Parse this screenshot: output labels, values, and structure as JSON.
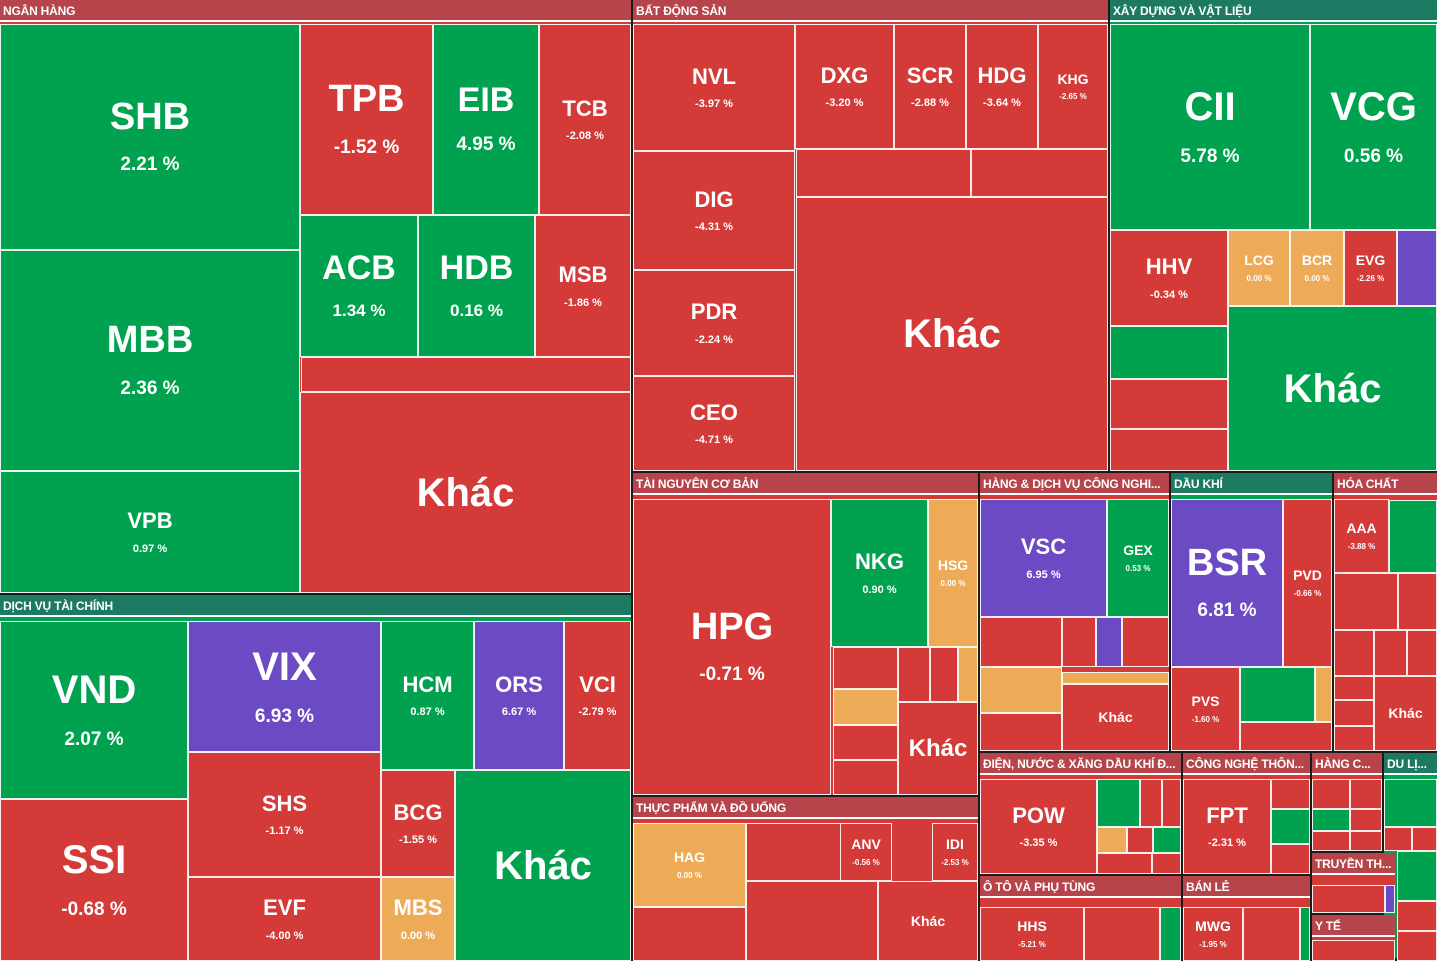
{
  "colors": {
    "up": "#00a24f",
    "down": "#d33a38",
    "ceiling": "#6b4ac4",
    "flat": "#eeab57",
    "header_red": "#b7444b",
    "header_green": "#1c7a62"
  },
  "sections": [
    {
      "key": "bank",
      "title": "NGÂN HÀNG",
      "tone": "red"
    },
    {
      "key": "realestate",
      "title": "BẤT ĐỘNG SẢN",
      "tone": "red"
    },
    {
      "key": "construction",
      "title": "XÂY DỰNG VÀ VẬT LIỆU",
      "tone": "green"
    },
    {
      "key": "finance",
      "title": "DỊCH VỤ TÀI CHÍNH",
      "tone": "green"
    },
    {
      "key": "resources",
      "title": "TÀI NGUYÊN CƠ BẢN",
      "tone": "red"
    },
    {
      "key": "industrial",
      "title": "HÀNG & DỊCH VỤ CÔNG NGHI...",
      "tone": "red"
    },
    {
      "key": "oilgas",
      "title": "DẦU KHÍ",
      "tone": "green"
    },
    {
      "key": "chemicals",
      "title": "HÓA CHẤT",
      "tone": "red"
    },
    {
      "key": "food",
      "title": "THỰC PHẨM VÀ ĐỒ UỐNG",
      "tone": "red"
    },
    {
      "key": "utilities",
      "title": "ĐIỆN, NƯỚC & XĂNG DẦU KHÍ Đ...",
      "tone": "red"
    },
    {
      "key": "tech",
      "title": "CÔNG NGHỆ THÔN...",
      "tone": "red"
    },
    {
      "key": "consumer",
      "title": "HÀNG C...",
      "tone": "red"
    },
    {
      "key": "travel",
      "title": "DU LỊ...",
      "tone": "green"
    },
    {
      "key": "auto",
      "title": "Ô TÔ VÀ PHỤ TÙNG",
      "tone": "red"
    },
    {
      "key": "retail",
      "title": "BÁN LẺ",
      "tone": "red"
    },
    {
      "key": "media",
      "title": "TRUYỀN TH...",
      "tone": "red"
    },
    {
      "key": "health",
      "title": "Y TẾ",
      "tone": "red"
    }
  ],
  "stocks": [
    {
      "sector": "bank",
      "ticker": "SHB",
      "change": "2.21 %",
      "status": "up"
    },
    {
      "sector": "bank",
      "ticker": "MBB",
      "change": "2.36 %",
      "status": "up"
    },
    {
      "sector": "bank",
      "ticker": "VPB",
      "change": "0.97 %",
      "status": "up"
    },
    {
      "sector": "bank",
      "ticker": "TPB",
      "change": "-1.52 %",
      "status": "down"
    },
    {
      "sector": "bank",
      "ticker": "EIB",
      "change": "4.95 %",
      "status": "up"
    },
    {
      "sector": "bank",
      "ticker": "TCB",
      "change": "-2.08 %",
      "status": "down"
    },
    {
      "sector": "bank",
      "ticker": "ACB",
      "change": "1.34 %",
      "status": "up"
    },
    {
      "sector": "bank",
      "ticker": "HDB",
      "change": "0.16 %",
      "status": "up"
    },
    {
      "sector": "bank",
      "ticker": "MSB",
      "change": "-1.86 %",
      "status": "down"
    },
    {
      "sector": "bank",
      "ticker": "Khác",
      "change": "",
      "status": "down"
    },
    {
      "sector": "realestate",
      "ticker": "NVL",
      "change": "-3.97 %",
      "status": "down"
    },
    {
      "sector": "realestate",
      "ticker": "DXG",
      "change": "-3.20 %",
      "status": "down"
    },
    {
      "sector": "realestate",
      "ticker": "SCR",
      "change": "-2.88 %",
      "status": "down"
    },
    {
      "sector": "realestate",
      "ticker": "HDG",
      "change": "-3.64 %",
      "status": "down"
    },
    {
      "sector": "realestate",
      "ticker": "KHG",
      "change": "-2.65 %",
      "status": "down"
    },
    {
      "sector": "realestate",
      "ticker": "DIG",
      "change": "-4.31 %",
      "status": "down"
    },
    {
      "sector": "realestate",
      "ticker": "PDR",
      "change": "-2.24 %",
      "status": "down"
    },
    {
      "sector": "realestate",
      "ticker": "CEO",
      "change": "-4.71 %",
      "status": "down"
    },
    {
      "sector": "realestate",
      "ticker": "Khác",
      "change": "",
      "status": "down"
    },
    {
      "sector": "construction",
      "ticker": "CII",
      "change": "5.78 %",
      "status": "up"
    },
    {
      "sector": "construction",
      "ticker": "VCG",
      "change": "0.56 %",
      "status": "up"
    },
    {
      "sector": "construction",
      "ticker": "HHV",
      "change": "-0.34 %",
      "status": "down"
    },
    {
      "sector": "construction",
      "ticker": "LCG",
      "change": "0.00 %",
      "status": "flat"
    },
    {
      "sector": "construction",
      "ticker": "BCR",
      "change": "0.00 %",
      "status": "flat"
    },
    {
      "sector": "construction",
      "ticker": "EVG",
      "change": "-2.26 %",
      "status": "down"
    },
    {
      "sector": "construction",
      "ticker": "Khác",
      "change": "",
      "status": "up"
    },
    {
      "sector": "finance",
      "ticker": "VND",
      "change": "2.07 %",
      "status": "up"
    },
    {
      "sector": "finance",
      "ticker": "SSI",
      "change": "-0.68 %",
      "status": "down"
    },
    {
      "sector": "finance",
      "ticker": "VIX",
      "change": "6.93 %",
      "status": "ceiling"
    },
    {
      "sector": "finance",
      "ticker": "SHS",
      "change": "-1.17 %",
      "status": "down"
    },
    {
      "sector": "finance",
      "ticker": "EVF",
      "change": "-4.00 %",
      "status": "down"
    },
    {
      "sector": "finance",
      "ticker": "HCM",
      "change": "0.87 %",
      "status": "up"
    },
    {
      "sector": "finance",
      "ticker": "ORS",
      "change": "6.67 %",
      "status": "ceiling"
    },
    {
      "sector": "finance",
      "ticker": "VCI",
      "change": "-2.79 %",
      "status": "down"
    },
    {
      "sector": "finance",
      "ticker": "BCG",
      "change": "-1.55 %",
      "status": "down"
    },
    {
      "sector": "finance",
      "ticker": "MBS",
      "change": "0.00 %",
      "status": "flat"
    },
    {
      "sector": "finance",
      "ticker": "Khác",
      "change": "",
      "status": "up"
    },
    {
      "sector": "resources",
      "ticker": "HPG",
      "change": "-0.71 %",
      "status": "down"
    },
    {
      "sector": "resources",
      "ticker": "NKG",
      "change": "0.90 %",
      "status": "up"
    },
    {
      "sector": "resources",
      "ticker": "HSG",
      "change": "0.00 %",
      "status": "flat"
    },
    {
      "sector": "resources",
      "ticker": "Khác",
      "change": "",
      "status": "down"
    },
    {
      "sector": "industrial",
      "ticker": "VSC",
      "change": "6.95 %",
      "status": "ceiling"
    },
    {
      "sector": "industrial",
      "ticker": "GEX",
      "change": "0.53 %",
      "status": "up"
    },
    {
      "sector": "industrial",
      "ticker": "Khác",
      "change": "",
      "status": "down"
    },
    {
      "sector": "oilgas",
      "ticker": "BSR",
      "change": "6.81 %",
      "status": "ceiling"
    },
    {
      "sector": "oilgas",
      "ticker": "PVD",
      "change": "-0.66 %",
      "status": "down"
    },
    {
      "sector": "oilgas",
      "ticker": "PVS",
      "change": "-1.60 %",
      "status": "down"
    },
    {
      "sector": "chemicals",
      "ticker": "AAA",
      "change": "-3.88 %",
      "status": "down"
    },
    {
      "sector": "chemicals",
      "ticker": "Khác",
      "change": "",
      "status": "down"
    },
    {
      "sector": "food",
      "ticker": "HAG",
      "change": "0.00 %",
      "status": "flat"
    },
    {
      "sector": "food",
      "ticker": "ANV",
      "change": "-0.56 %",
      "status": "down"
    },
    {
      "sector": "food",
      "ticker": "IDI",
      "change": "-2.53 %",
      "status": "down"
    },
    {
      "sector": "food",
      "ticker": "Khác",
      "change": "",
      "status": "down"
    },
    {
      "sector": "utilities",
      "ticker": "POW",
      "change": "-3.35 %",
      "status": "down"
    },
    {
      "sector": "tech",
      "ticker": "FPT",
      "change": "-2.31 %",
      "status": "down"
    },
    {
      "sector": "auto",
      "ticker": "HHS",
      "change": "-5.21 %",
      "status": "down"
    },
    {
      "sector": "retail",
      "ticker": "MWG",
      "change": "-1.95 %",
      "status": "down"
    }
  ],
  "chart_data": {
    "type": "heatmap",
    "title": "",
    "sectors": [
      "NGÂN HÀNG",
      "BẤT ĐỘNG SẢN",
      "XÂY DỰNG VÀ VẬT LIỆU",
      "DỊCH VỤ TÀI CHÍNH",
      "TÀI NGUYÊN CƠ BẢN",
      "HÀNG & DỊCH VỤ CÔNG NGHI...",
      "DẦU KHÍ",
      "HÓA CHẤT",
      "THỰC PHẨM VÀ ĐỒ UỐNG",
      "ĐIỆN, NƯỚC & XĂNG DẦU KHÍ Đ...",
      "CÔNG NGHỆ THÔN...",
      "HÀNG C...",
      "DU LỊ...",
      "Ô TÔ VÀ PHỤ TÙNG",
      "BÁN LẺ",
      "TRUYỀN TH...",
      "Y TẾ"
    ],
    "series": [
      {
        "values": [
          2.21,
          2.36,
          0.97,
          -1.52,
          4.95,
          -2.08,
          1.34,
          0.16,
          -1.86,
          -3.97,
          -3.2,
          -2.88,
          -3.64,
          -2.65,
          -4.31,
          -2.24,
          -4.71,
          5.78,
          0.56,
          -0.34,
          0.0,
          0.0,
          -2.26,
          2.07,
          -0.68,
          6.93,
          -1.17,
          -4.0,
          0.87,
          6.67,
          -2.79,
          -1.55,
          0.0,
          -0.71,
          0.9,
          0.0,
          6.95,
          0.53,
          6.81,
          -0.66,
          -1.6,
          -3.88,
          0.0,
          -0.56,
          -2.53,
          -3.35,
          -2.31,
          -5.21,
          -1.95
        ]
      }
    ]
  }
}
